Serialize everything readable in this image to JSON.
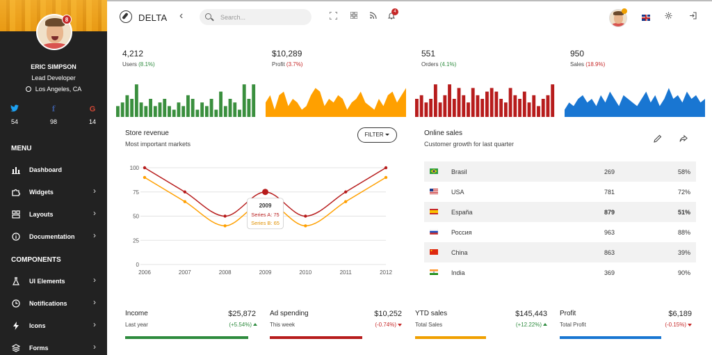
{
  "app": {
    "title": "DELTA"
  },
  "colors": {
    "green": "#3a8f3e",
    "orange": "#ffa000",
    "red": "#b71c1c",
    "blue": "#1976d2",
    "sidebar": "#222222"
  },
  "user": {
    "name": "ERIC SIMPSON",
    "role": "Lead Developer",
    "location": "Los Angeles, CA",
    "avatar_badge": "8"
  },
  "social": [
    {
      "network": "twitter",
      "icon": "twitter-icon",
      "count": "54",
      "color": "#1da1f2"
    },
    {
      "network": "facebook",
      "icon": "facebook-icon",
      "count": "98",
      "color": "#3b5998"
    },
    {
      "network": "google",
      "icon": "google-icon",
      "count": "14",
      "color": "#d34836"
    }
  ],
  "menu": {
    "title": "MENU",
    "items": [
      {
        "label": "Dashboard",
        "icon": "bar-chart-icon",
        "has_children": false
      },
      {
        "label": "Widgets",
        "icon": "puzzle-icon",
        "has_children": true
      },
      {
        "label": "Layouts",
        "icon": "layout-icon",
        "has_children": true
      },
      {
        "label": "Documentation",
        "icon": "info-icon",
        "has_children": true
      }
    ]
  },
  "components": {
    "title": "COMPONENTS",
    "items": [
      {
        "label": "UI Elements",
        "icon": "flask-icon",
        "has_children": true
      },
      {
        "label": "Notifications",
        "icon": "clock-icon",
        "has_children": true
      },
      {
        "label": "Icons",
        "icon": "bolt-icon",
        "has_children": true
      },
      {
        "label": "Forms",
        "icon": "layers-icon",
        "has_children": true
      }
    ]
  },
  "search": {
    "placeholder": "Search..."
  },
  "topbar": {
    "notifications_badge": "4"
  },
  "stats": [
    {
      "value": "4,212",
      "label": "Users",
      "change": "(8.1%)",
      "direction": "up",
      "color": "#3a8f3e",
      "type": "bar",
      "series": [
        3,
        4,
        6,
        5,
        9,
        4,
        3,
        5,
        3,
        4,
        5,
        3,
        2,
        4,
        3,
        6,
        5,
        2,
        4,
        3,
        5,
        2,
        7,
        3,
        5,
        4,
        2,
        9,
        5,
        9
      ]
    },
    {
      "value": "$10,289",
      "label": "Profit",
      "change": "(3.7%)",
      "direction": "down",
      "color": "#ffa000",
      "type": "area",
      "series": [
        4,
        6,
        2,
        6,
        7,
        3,
        5,
        4,
        2,
        3,
        6,
        8,
        7,
        3,
        5,
        4,
        6,
        5,
        2,
        4,
        5,
        7,
        4,
        3,
        2,
        5,
        3,
        6,
        7,
        4,
        6,
        8
      ]
    },
    {
      "value": "551",
      "label": "Orders",
      "change": "(4.1%)",
      "direction": "up",
      "color": "#b71c1c",
      "type": "bar",
      "series": [
        5,
        6,
        4,
        5,
        9,
        4,
        6,
        9,
        5,
        8,
        6,
        4,
        8,
        6,
        5,
        7,
        8,
        7,
        5,
        4,
        8,
        6,
        5,
        7,
        4,
        6,
        3,
        5,
        6,
        9
      ]
    },
    {
      "value": "950",
      "label": "Sales",
      "change": "(18.9%)",
      "direction": "down",
      "color": "#1976d2",
      "type": "area",
      "series": [
        2,
        4,
        3,
        5,
        6,
        4,
        5,
        3,
        6,
        4,
        7,
        5,
        3,
        6,
        5,
        4,
        3,
        5,
        7,
        4,
        6,
        3,
        5,
        8,
        5,
        6,
        4,
        7,
        5,
        6,
        4,
        5
      ]
    }
  ],
  "store_revenue": {
    "title": "Store revenue",
    "subtitle": "Most important markets",
    "filter_label": "FILTER",
    "tooltip": {
      "title": "2009",
      "series_a": "Series A: 75",
      "series_b": "Series B: 65"
    }
  },
  "chart_data": {
    "type": "line",
    "categories": [
      "2006",
      "2007",
      "2008",
      "2009",
      "2010",
      "2011",
      "2012"
    ],
    "series": [
      {
        "name": "Series A",
        "values": [
          100,
          75,
          50,
          75,
          50,
          75,
          100
        ],
        "color": "#b71c1c"
      },
      {
        "name": "Series B",
        "values": [
          90,
          65,
          40,
          65,
          40,
          65,
          90
        ],
        "color": "#ffa000"
      }
    ],
    "yticks": [
      "0",
      "25",
      "50",
      "75",
      "100"
    ],
    "ylim": [
      0,
      100
    ],
    "grid": true,
    "highlight_index": 3
  },
  "online_sales": {
    "title": "Online sales",
    "subtitle": "Customer growth for last quarter",
    "rows": [
      {
        "flag": "brazil-flag",
        "country": "Brasil",
        "count": "269",
        "pct": "58%"
      },
      {
        "flag": "usa-flag",
        "country": "USA",
        "count": "781",
        "pct": "72%"
      },
      {
        "flag": "spain-flag",
        "country": "España",
        "count": "879",
        "pct": "51%",
        "bold": true
      },
      {
        "flag": "russia-flag",
        "country": "Россия",
        "count": "963",
        "pct": "88%"
      },
      {
        "flag": "china-flag",
        "country": "China",
        "count": "863",
        "pct": "39%"
      },
      {
        "flag": "india-flag",
        "country": "India",
        "count": "369",
        "pct": "90%"
      }
    ]
  },
  "kpis": [
    {
      "name": "Income",
      "value": "$25,872",
      "period": "Last year",
      "change": "(+5.54%)",
      "direction": "up",
      "color": "#2e8b3e",
      "progress": 0.82
    },
    {
      "name": "Ad spending",
      "value": "$10,252",
      "period": "This week",
      "change": "(-0.74%)",
      "direction": "down",
      "color": "#b71c1c",
      "progress": 0.7
    },
    {
      "name": "YTD sales",
      "value": "$145,443",
      "period": "Total Sales",
      "change": "(+12.22%)",
      "direction": "up",
      "color": "#f0a000",
      "progress": 0.55
    },
    {
      "name": "Profit",
      "value": "$6,189",
      "period": "Total Profit",
      "change": "(-0.15%)",
      "direction": "down",
      "color": "#1976d2",
      "progress": 0.77
    }
  ]
}
